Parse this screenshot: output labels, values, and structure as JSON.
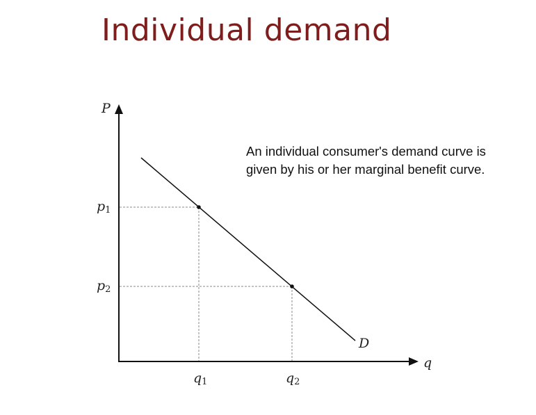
{
  "title": "Individual demand",
  "caption": {
    "line1": "An individual consumer's demand curve is",
    "line2": "given by his or her marginal benefit curve."
  },
  "axes": {
    "y_label": "P",
    "x_label": "q"
  },
  "price_labels": {
    "p1": {
      "main": "p",
      "sub": "1"
    },
    "p2": {
      "main": "p",
      "sub": "2"
    }
  },
  "quantity_labels": {
    "q1": {
      "main": "q",
      "sub": "1"
    },
    "q2": {
      "main": "q",
      "sub": "2"
    }
  },
  "curve_label": "D",
  "colors": {
    "title": "#7f1d1d",
    "axis": "#111111",
    "guide": "#888888"
  }
}
